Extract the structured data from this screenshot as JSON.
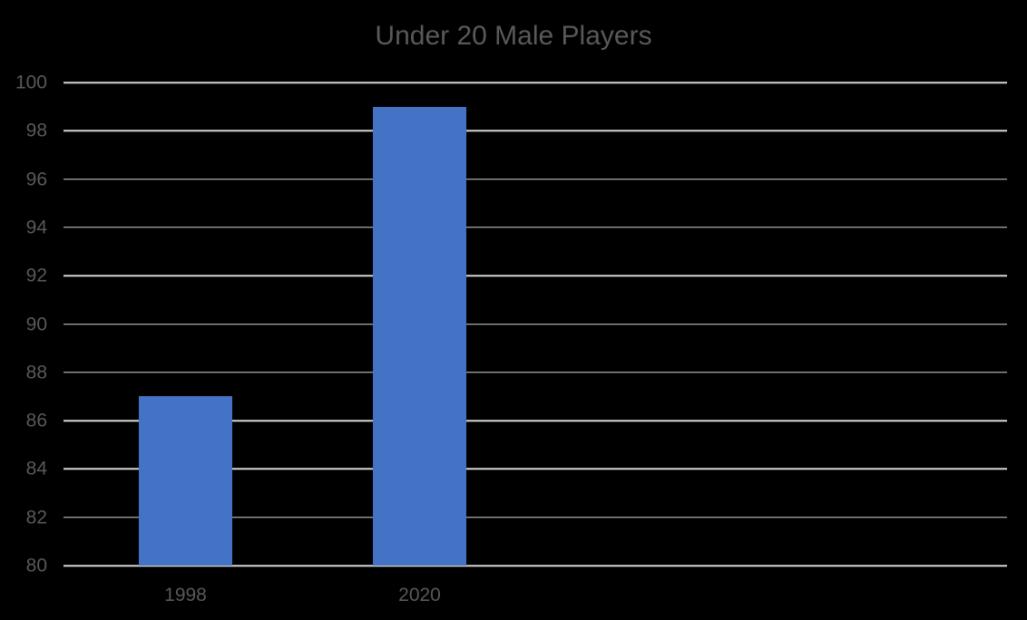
{
  "chart_data": {
    "type": "bar",
    "title": "Under 20 Male Players",
    "categories": [
      "1998",
      "2020"
    ],
    "values": [
      87,
      99
    ],
    "xlabel": "",
    "ylabel": "",
    "ylim": [
      80,
      100
    ],
    "ytick_step": 2,
    "ytick_labels": [
      "80",
      "82",
      "84",
      "86",
      "88",
      "90",
      "92",
      "94",
      "96",
      "98",
      "100"
    ],
    "grid": "horizontal",
    "legend": "none",
    "colors": {
      "background": "#000000",
      "bar": "#4472C4",
      "gridline": "#D6D6D6",
      "title_text": "#595959",
      "axis_text": "#595959"
    }
  }
}
